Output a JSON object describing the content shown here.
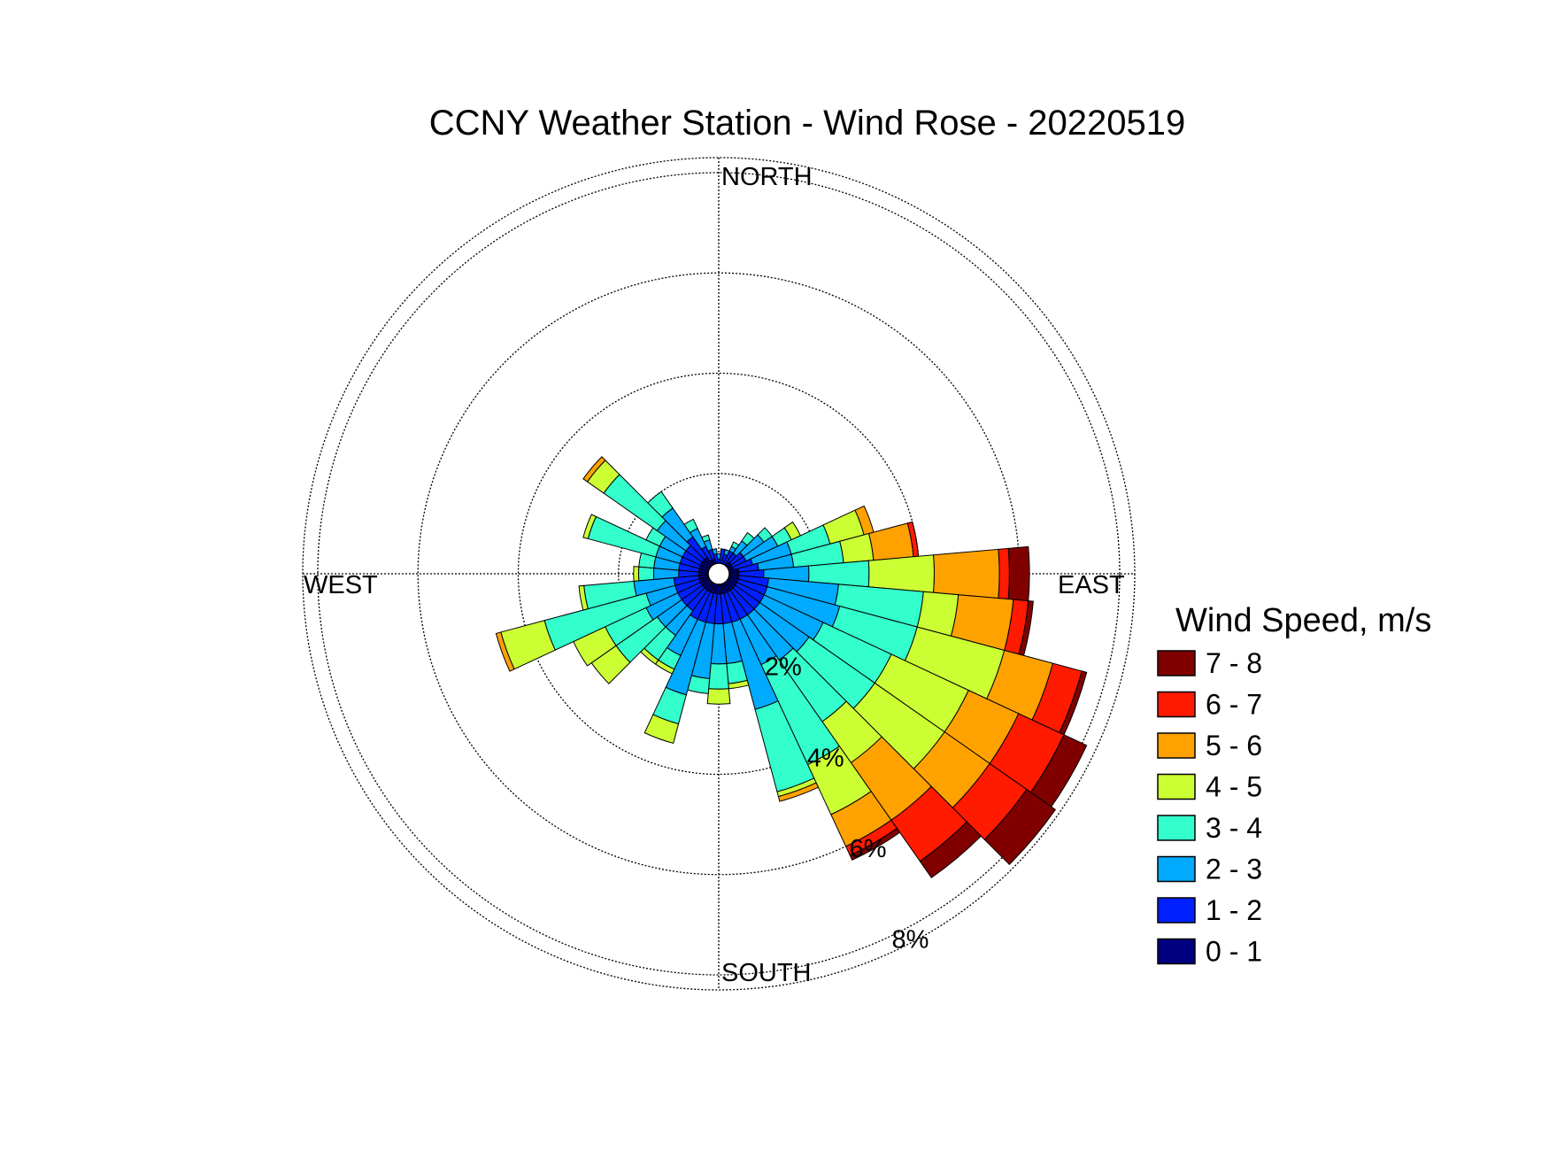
{
  "chart_data": {
    "type": "wind-rose",
    "title": "CCNY Weather Station - Wind Rose - 20220519",
    "direction_labels": {
      "north": "NORTH",
      "east": "EAST",
      "south": "SOUTH",
      "west": "WEST"
    },
    "radial_unit": "%",
    "radial_ticks": [
      2,
      4,
      6,
      8
    ],
    "radial_tick_labels": [
      "2%",
      "4%",
      "6%",
      "8%"
    ],
    "radial_max": 8.3,
    "legend_title": "Wind Speed, m/s",
    "legend_placement": "right",
    "speed_bins": [
      "0 - 1",
      "1 - 2",
      "2 - 3",
      "3 - 4",
      "4 - 5",
      "5 - 6",
      "6 - 7",
      "7 - 8"
    ],
    "bin_colors": [
      "#000080",
      "#0020ff",
      "#00aaff",
      "#33ffcc",
      "#ccff33",
      "#ffa200",
      "#ff1a00",
      "#800000"
    ],
    "sector_width_deg": 10,
    "sectors": [
      {
        "dir": 10,
        "cum": [
          0.2,
          0.5
        ]
      },
      {
        "dir": 20,
        "cum": [
          0.2,
          0.4,
          0.5
        ]
      },
      {
        "dir": 30,
        "cum": [
          0.2,
          0.5,
          0.6,
          0.7
        ]
      },
      {
        "dir": 40,
        "cum": [
          0.3,
          0.5,
          0.8,
          1.0
        ]
      },
      {
        "dir": 50,
        "cum": [
          0.3,
          0.6,
          1.1,
          1.3
        ]
      },
      {
        "dir": 60,
        "cum": [
          0.3,
          0.6,
          1.3,
          1.6,
          1.8
        ]
      },
      {
        "dir": 70,
        "cum": [
          0.3,
          0.7,
          1.5,
          2.3,
          3.0,
          3.2
        ]
      },
      {
        "dir": 80,
        "cum": [
          0.4,
          0.8,
          1.5,
          2.5,
          3.1,
          3.9,
          4.0
        ]
      },
      {
        "dir": 90,
        "cum": [
          0.4,
          0.9,
          1.8,
          3.0,
          4.3,
          5.6,
          5.8,
          6.2
        ]
      },
      {
        "dir": 100,
        "cum": [
          0.4,
          1.0,
          2.4,
          4.1,
          4.8,
          5.9,
          6.2,
          6.3
        ]
      },
      {
        "dir": 110,
        "cum": [
          0.4,
          1.0,
          2.5,
          4.1,
          5.9,
          6.9,
          7.5,
          7.6
        ]
      },
      {
        "dir": 120,
        "cum": [
          0.4,
          1.0,
          2.3,
          3.8,
          5.5,
          6.6,
          7.6,
          8.1
        ]
      },
      {
        "dir": 130,
        "cum": [
          0.4,
          1.0,
          2.2,
          3.8,
          5.5,
          6.6,
          7.5,
          8.2
        ]
      },
      {
        "dir": 140,
        "cum": [
          0.4,
          1.0,
          2.1,
          3.6,
          4.6,
          6.0,
          7.0,
          7.4
        ]
      },
      {
        "dir": 150,
        "cum": [
          0.4,
          1.0,
          2.0,
          4.2,
          5.3,
          6.0,
          6.2,
          6.3
        ]
      },
      {
        "dir": 160,
        "cum": [
          0.4,
          1.0,
          2.8,
          4.5,
          4.6,
          4.7
        ]
      },
      {
        "dir": 170,
        "cum": [
          0.4,
          1.0,
          1.8,
          2.2,
          2.3
        ]
      },
      {
        "dir": 180,
        "cum": [
          0.4,
          1.0,
          1.8,
          2.3,
          2.6
        ]
      },
      {
        "dir": 190,
        "cum": [
          0.4,
          1.0,
          2.1,
          2.4
        ]
      },
      {
        "dir": 200,
        "cum": [
          0.4,
          1.0,
          2.5,
          3.1,
          3.5
        ]
      },
      {
        "dir": 210,
        "cum": [
          0.4,
          1.0,
          1.8,
          2.1,
          2.2
        ]
      },
      {
        "dir": 220,
        "cum": [
          0.4,
          0.9,
          1.5,
          2.1,
          2.2
        ]
      },
      {
        "dir": 230,
        "cum": [
          0.4,
          0.9,
          1.5,
          2.5,
          3.1
        ]
      },
      {
        "dir": 240,
        "cum": [
          0.4,
          0.9,
          1.6,
          2.5,
          3.2
        ]
      },
      {
        "dir": 250,
        "cum": [
          0.4,
          0.9,
          1.5,
          3.6,
          4.5,
          4.6
        ]
      },
      {
        "dir": 260,
        "cum": [
          0.4,
          0.9,
          1.7,
          2.7,
          2.8
        ]
      },
      {
        "dir": 270,
        "cum": [
          0.4,
          0.8,
          1.3,
          1.6,
          1.7
        ]
      },
      {
        "dir": 280,
        "cum": [
          0.4,
          0.8,
          1.3,
          1.6
        ]
      },
      {
        "dir": 290,
        "cum": [
          0.4,
          0.8,
          1.3,
          2.7,
          2.8
        ]
      },
      {
        "dir": 300,
        "cum": [
          0.4,
          0.8,
          1.3,
          1.6
        ]
      },
      {
        "dir": 310,
        "cum": [
          0.4,
          0.8,
          1.5,
          2.8,
          3.2,
          3.3
        ]
      },
      {
        "dir": 320,
        "cum": [
          0.4,
          0.9,
          1.6,
          2.0
        ]
      },
      {
        "dir": 330,
        "cum": [
          0.3,
          0.6,
          1.0,
          1.2
        ]
      },
      {
        "dir": 340,
        "cum": [
          0.3,
          0.5,
          0.7,
          0.8
        ]
      },
      {
        "dir": 350,
        "cum": [
          0.2,
          0.4,
          0.5
        ]
      },
      {
        "dir": 360,
        "cum": [
          0.2,
          0.3,
          0.4
        ]
      }
    ]
  }
}
